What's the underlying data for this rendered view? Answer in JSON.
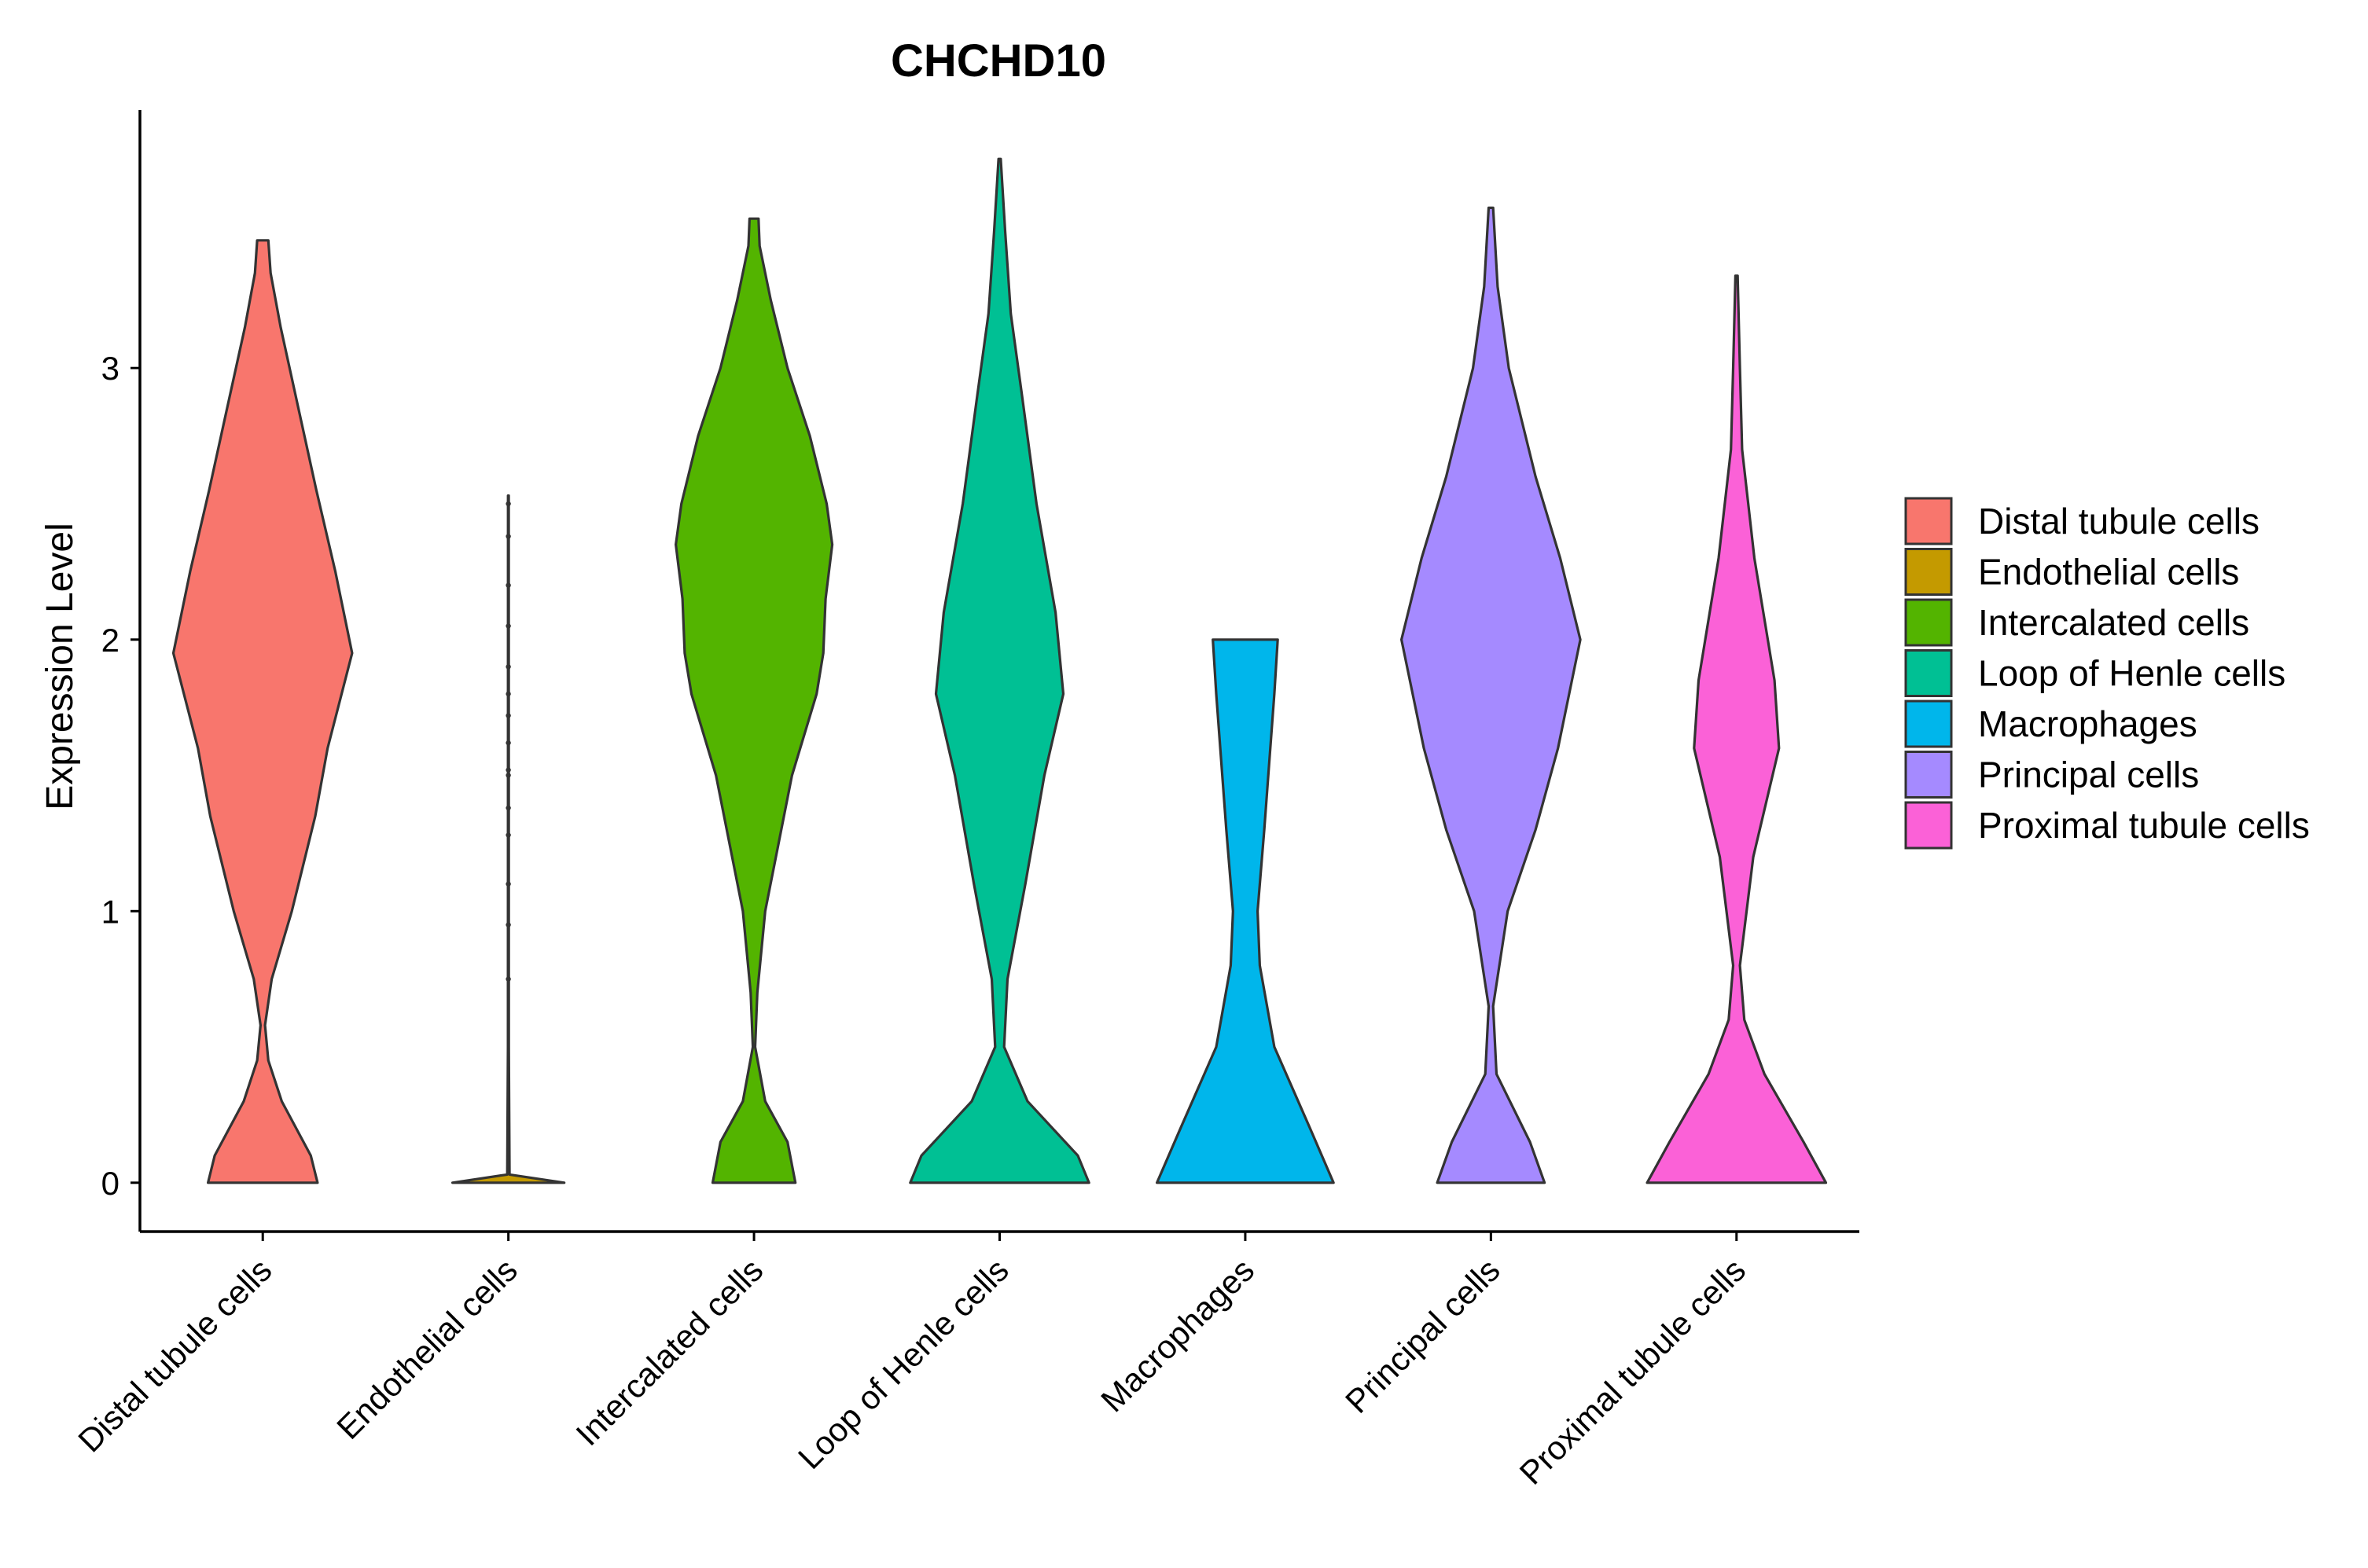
{
  "chart_data": {
    "type": "violin",
    "title": "CHCHD10",
    "ylabel": "Expression Level",
    "xlabel": "",
    "ylim": [
      -0.18,
      3.95
    ],
    "yticks": [
      0,
      1,
      2,
      3
    ],
    "categories": [
      "Distal tubule cells",
      "Endothelial cells",
      "Intercalated cells",
      "Loop of Henle cells",
      "Macrophages",
      "Principal cells",
      "Proximal tubule cells"
    ],
    "colors": [
      "#F8766D",
      "#C49A00",
      "#53B400",
      "#00C094",
      "#00B6EB",
      "#A58AFF",
      "#FB61D7"
    ],
    "legend_position": "right",
    "series": [
      {
        "name": "Distal tubule cells",
        "max": 3.47,
        "profile": [
          [
            0,
            0.49
          ],
          [
            0.1,
            0.43
          ],
          [
            0.3,
            0.17
          ],
          [
            0.45,
            0.05
          ],
          [
            0.58,
            0.02
          ],
          [
            0.75,
            0.08
          ],
          [
            1.0,
            0.26
          ],
          [
            1.35,
            0.47
          ],
          [
            1.6,
            0.58
          ],
          [
            1.95,
            0.8
          ],
          [
            2.25,
            0.65
          ],
          [
            2.55,
            0.48
          ],
          [
            2.85,
            0.32
          ],
          [
            3.15,
            0.16
          ],
          [
            3.35,
            0.07
          ],
          [
            3.47,
            0.05
          ]
        ]
      },
      {
        "name": "Endothelial cells",
        "max": 2.53,
        "widthScale": 0.5,
        "profile": [
          [
            0,
            1.0
          ],
          [
            0.03,
            0.02
          ],
          [
            0.5,
            0.008
          ],
          [
            2.53,
            0.006
          ]
        ],
        "points": [
          0.75,
          0.95,
          1.1,
          1.28,
          1.38,
          1.5,
          1.52,
          1.62,
          1.72,
          1.8,
          1.9,
          2.05,
          2.2,
          2.38,
          2.5
        ]
      },
      {
        "name": "Intercalated cells",
        "max": 3.55,
        "profile": [
          [
            0,
            0.37
          ],
          [
            0.15,
            0.3
          ],
          [
            0.3,
            0.1
          ],
          [
            0.5,
            0.01
          ],
          [
            0.7,
            0.03
          ],
          [
            1.0,
            0.1
          ],
          [
            1.5,
            0.34
          ],
          [
            1.8,
            0.56
          ],
          [
            1.95,
            0.62
          ],
          [
            2.15,
            0.64
          ],
          [
            2.35,
            0.7
          ],
          [
            2.5,
            0.65
          ],
          [
            2.75,
            0.5
          ],
          [
            3.0,
            0.3
          ],
          [
            3.25,
            0.15
          ],
          [
            3.45,
            0.05
          ],
          [
            3.55,
            0.04
          ]
        ]
      },
      {
        "name": "Loop of Henle cells",
        "max": 3.77,
        "profile": [
          [
            0,
            0.8
          ],
          [
            0.1,
            0.7
          ],
          [
            0.3,
            0.25
          ],
          [
            0.5,
            0.04
          ],
          [
            0.75,
            0.07
          ],
          [
            1.1,
            0.23
          ],
          [
            1.5,
            0.4
          ],
          [
            1.8,
            0.57
          ],
          [
            2.1,
            0.5
          ],
          [
            2.5,
            0.33
          ],
          [
            2.9,
            0.2
          ],
          [
            3.2,
            0.1
          ],
          [
            3.5,
            0.05
          ],
          [
            3.77,
            0.01
          ]
        ]
      },
      {
        "name": "Macrophages",
        "max": 2.0,
        "profile": [
          [
            0,
            0.79
          ],
          [
            0.2,
            0.58
          ],
          [
            0.5,
            0.26
          ],
          [
            0.8,
            0.13
          ],
          [
            1.0,
            0.11
          ],
          [
            1.3,
            0.17
          ],
          [
            1.8,
            0.26
          ],
          [
            2.0,
            0.29
          ]
        ]
      },
      {
        "name": "Principal cells",
        "max": 3.59,
        "profile": [
          [
            0,
            0.48
          ],
          [
            0.15,
            0.35
          ],
          [
            0.4,
            0.05
          ],
          [
            0.65,
            0.02
          ],
          [
            1.0,
            0.15
          ],
          [
            1.3,
            0.4
          ],
          [
            1.6,
            0.6
          ],
          [
            2.0,
            0.8
          ],
          [
            2.3,
            0.62
          ],
          [
            2.6,
            0.4
          ],
          [
            3.0,
            0.16
          ],
          [
            3.3,
            0.06
          ],
          [
            3.59,
            0.02
          ]
        ]
      },
      {
        "name": "Proximal tubule cells",
        "max": 3.34,
        "profile": [
          [
            0,
            0.8
          ],
          [
            0.15,
            0.6
          ],
          [
            0.4,
            0.25
          ],
          [
            0.6,
            0.07
          ],
          [
            0.8,
            0.03
          ],
          [
            1.2,
            0.15
          ],
          [
            1.6,
            0.38
          ],
          [
            1.85,
            0.34
          ],
          [
            2.3,
            0.16
          ],
          [
            2.7,
            0.05
          ],
          [
            3.0,
            0.03
          ],
          [
            3.34,
            0.01
          ]
        ]
      }
    ]
  }
}
